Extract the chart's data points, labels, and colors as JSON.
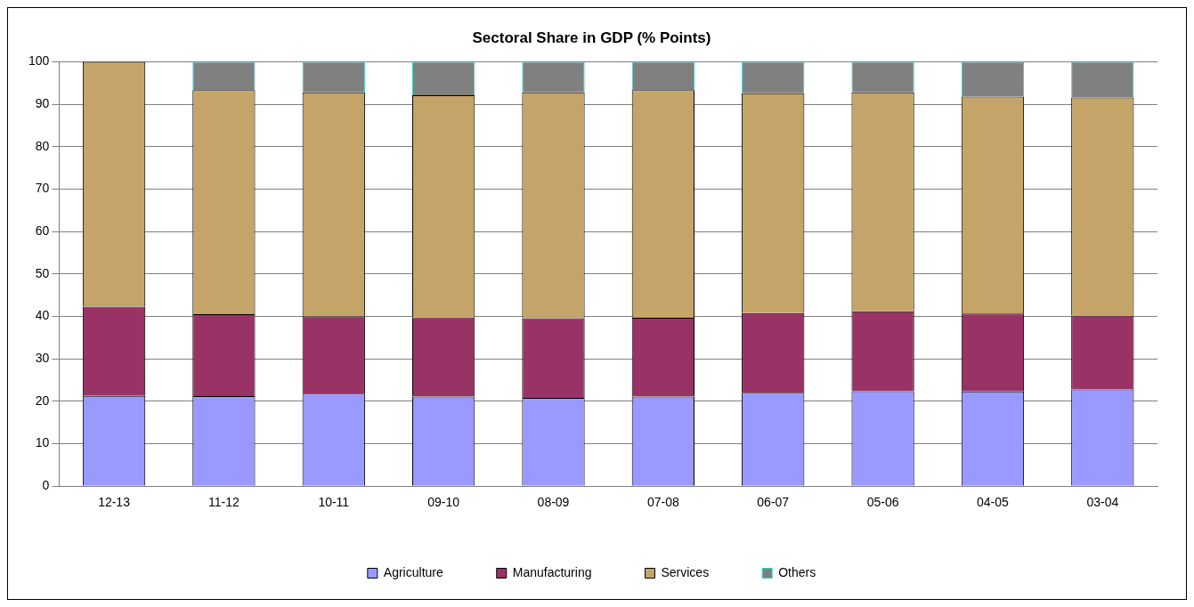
{
  "chart_data": {
    "type": "bar",
    "title": "Sectoral Share in GDP (% Points)",
    "stacked": true,
    "categories": [
      "12-13",
      "11-12",
      "10-11",
      "09-10",
      "08-09",
      "07-08",
      "06-07",
      "05-06",
      "04-05",
      "03-04"
    ],
    "series": [
      {
        "name": "Agriculture",
        "color": "#9999ff",
        "values": [
          21.3,
          21.2,
          21.8,
          21.1,
          20.8,
          21.1,
          22.0,
          22.4,
          22.3,
          22.8
        ]
      },
      {
        "name": "Manufacturing",
        "color": "#993366",
        "values": [
          21.0,
          19.3,
          18.2,
          18.7,
          18.8,
          18.6,
          18.8,
          18.8,
          18.4,
          17.4
        ]
      },
      {
        "name": "Services",
        "color": "#c4a468",
        "values": [
          57.7,
          52.8,
          52.8,
          52.3,
          53.2,
          53.6,
          51.8,
          51.6,
          51.1,
          51.4
        ]
      },
      {
        "name": "Others",
        "color": "#808080",
        "values": [
          0,
          6.7,
          7.2,
          7.9,
          7.2,
          6.7,
          7.4,
          7.2,
          8.2,
          8.4
        ]
      }
    ],
    "ylim": [
      0,
      100
    ],
    "yticks": [
      0,
      10,
      20,
      30,
      40,
      50,
      60,
      70,
      80,
      90,
      100
    ],
    "grid": "y",
    "legend": "bottom"
  }
}
